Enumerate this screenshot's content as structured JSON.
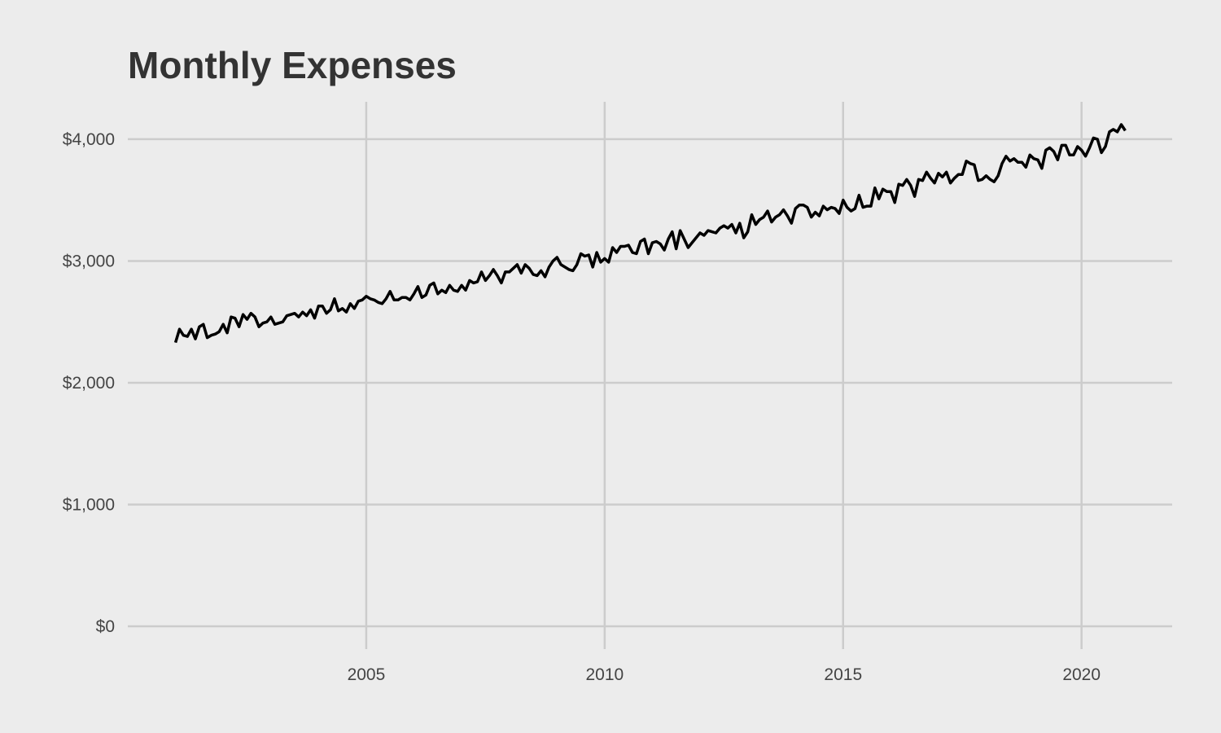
{
  "chart_data": {
    "type": "line",
    "title": "Monthly Expenses",
    "xlabel": "",
    "ylabel": "",
    "x_start": "2001-01",
    "x_frequency": "monthly",
    "xlim": [
      2000,
      2021.9
    ],
    "ylim": [
      -187,
      4307
    ],
    "x_ticks": [
      2005,
      2010,
      2015,
      2020
    ],
    "x_tick_labels": [
      "2005",
      "2010",
      "2015",
      "2020"
    ],
    "y_ticks": [
      0,
      1000,
      2000,
      3000,
      4000
    ],
    "y_tick_labels": [
      "$0",
      "$1,000",
      "$2,000",
      "$3,000",
      "$4,000"
    ],
    "grid": true,
    "line_color": "#000000",
    "background_color": "#ececec",
    "grid_color": "#cccccc",
    "values": [
      2330,
      2440,
      2390,
      2380,
      2440,
      2360,
      2460,
      2480,
      2370,
      2390,
      2400,
      2420,
      2480,
      2410,
      2540,
      2530,
      2460,
      2560,
      2520,
      2570,
      2540,
      2460,
      2490,
      2500,
      2540,
      2480,
      2490,
      2500,
      2550,
      2560,
      2570,
      2540,
      2580,
      2550,
      2600,
      2530,
      2630,
      2630,
      2570,
      2600,
      2690,
      2590,
      2610,
      2580,
      2650,
      2610,
      2670,
      2680,
      2710,
      2690,
      2680,
      2660,
      2650,
      2690,
      2750,
      2680,
      2680,
      2700,
      2700,
      2680,
      2730,
      2790,
      2700,
      2720,
      2800,
      2820,
      2730,
      2760,
      2740,
      2800,
      2760,
      2750,
      2800,
      2760,
      2840,
      2820,
      2830,
      2910,
      2840,
      2880,
      2930,
      2880,
      2820,
      2910,
      2910,
      2940,
      2970,
      2900,
      2970,
      2940,
      2890,
      2880,
      2920,
      2870,
      2950,
      3000,
      3030,
      2970,
      2950,
      2930,
      2920,
      2970,
      3060,
      3040,
      3050,
      2950,
      3070,
      2990,
      3020,
      2990,
      3110,
      3070,
      3120,
      3120,
      3130,
      3070,
      3060,
      3160,
      3180,
      3060,
      3150,
      3160,
      3140,
      3090,
      3180,
      3240,
      3100,
      3250,
      3180,
      3110,
      3150,
      3190,
      3230,
      3210,
      3250,
      3240,
      3230,
      3270,
      3290,
      3270,
      3300,
      3230,
      3310,
      3190,
      3240,
      3380,
      3300,
      3340,
      3360,
      3410,
      3320,
      3360,
      3380,
      3420,
      3370,
      3310,
      3430,
      3460,
      3460,
      3440,
      3360,
      3400,
      3370,
      3450,
      3420,
      3440,
      3430,
      3390,
      3500,
      3440,
      3410,
      3430,
      3540,
      3440,
      3450,
      3450,
      3600,
      3510,
      3590,
      3570,
      3570,
      3480,
      3630,
      3620,
      3670,
      3620,
      3530,
      3670,
      3660,
      3730,
      3680,
      3640,
      3720,
      3690,
      3730,
      3640,
      3680,
      3710,
      3710,
      3820,
      3800,
      3790,
      3660,
      3670,
      3700,
      3670,
      3650,
      3700,
      3800,
      3860,
      3820,
      3840,
      3810,
      3810,
      3770,
      3870,
      3840,
      3830,
      3760,
      3910,
      3930,
      3900,
      3830,
      3950,
      3950,
      3870,
      3870,
      3940,
      3910,
      3860,
      3930,
      4010,
      4000,
      3890,
      3940,
      4060,
      4080,
      4060,
      4120,
      4070
    ]
  }
}
